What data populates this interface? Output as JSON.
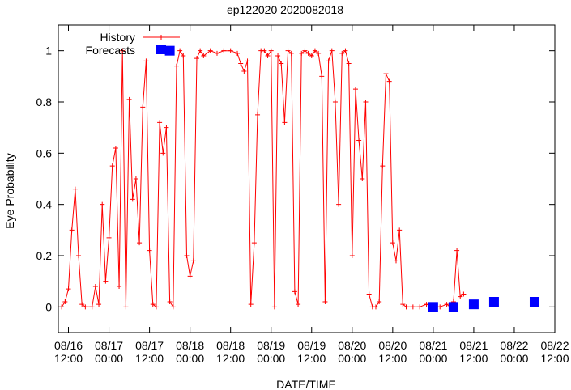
{
  "chart_data": {
    "type": "line",
    "title": "ep122020 2020082018",
    "xlabel": "DATE/TIME",
    "ylabel": "Eye Probability",
    "xlim": [
      "2020-08-16 09:00",
      "2020-08-22 12:00"
    ],
    "ylim": [
      -0.1,
      1.1
    ],
    "y_ticks": [
      "0",
      "0.2",
      "0.4",
      "0.6",
      "0.8",
      "1"
    ],
    "x_ticks": [
      {
        "date": "08/16",
        "time": "12:00"
      },
      {
        "date": "08/17",
        "time": "00:00"
      },
      {
        "date": "08/17",
        "time": "12:00"
      },
      {
        "date": "08/18",
        "time": "00:00"
      },
      {
        "date": "08/18",
        "time": "12:00"
      },
      {
        "date": "08/19",
        "time": "00:00"
      },
      {
        "date": "08/19",
        "time": "12:00"
      },
      {
        "date": "08/20",
        "time": "00:00"
      },
      {
        "date": "08/20",
        "time": "12:00"
      },
      {
        "date": "08/21",
        "time": "00:00"
      },
      {
        "date": "08/21",
        "time": "12:00"
      },
      {
        "date": "08/22",
        "time": "00:00"
      },
      {
        "date": "08/22",
        "time": "12:00"
      }
    ],
    "grid": false,
    "legend_position": "top-left",
    "series": [
      {
        "name": "History",
        "color": "#ff0000",
        "marker": "plus",
        "points": [
          [
            "2020-08-16 10:00",
            0.0
          ],
          [
            "2020-08-16 11:00",
            0.02
          ],
          [
            "2020-08-16 12:00",
            0.07
          ],
          [
            "2020-08-16 13:00",
            0.3
          ],
          [
            "2020-08-16 14:00",
            0.46
          ],
          [
            "2020-08-16 15:00",
            0.2
          ],
          [
            "2020-08-16 16:00",
            0.01
          ],
          [
            "2020-08-16 17:00",
            0.0
          ],
          [
            "2020-08-16 19:00",
            0.0
          ],
          [
            "2020-08-16 20:00",
            0.08
          ],
          [
            "2020-08-16 21:00",
            0.01
          ],
          [
            "2020-08-16 22:00",
            0.4
          ],
          [
            "2020-08-16 23:00",
            0.1
          ],
          [
            "2020-08-17 00:00",
            0.27
          ],
          [
            "2020-08-17 01:00",
            0.55
          ],
          [
            "2020-08-17 02:00",
            0.62
          ],
          [
            "2020-08-17 03:00",
            0.08
          ],
          [
            "2020-08-17 04:00",
            1.0
          ],
          [
            "2020-08-17 05:00",
            0.0
          ],
          [
            "2020-08-17 06:00",
            0.81
          ],
          [
            "2020-08-17 07:00",
            0.42
          ],
          [
            "2020-08-17 08:00",
            0.5
          ],
          [
            "2020-08-17 09:00",
            0.25
          ],
          [
            "2020-08-17 10:00",
            0.78
          ],
          [
            "2020-08-17 11:00",
            0.96
          ],
          [
            "2020-08-17 12:00",
            0.22
          ],
          [
            "2020-08-17 13:00",
            0.01
          ],
          [
            "2020-08-17 14:00",
            0.0
          ],
          [
            "2020-08-17 15:00",
            0.72
          ],
          [
            "2020-08-17 16:00",
            0.6
          ],
          [
            "2020-08-17 17:00",
            0.7
          ],
          [
            "2020-08-17 18:00",
            0.02
          ],
          [
            "2020-08-17 19:00",
            0.0
          ],
          [
            "2020-08-17 20:00",
            0.94
          ],
          [
            "2020-08-17 21:00",
            1.0
          ],
          [
            "2020-08-17 22:00",
            0.98
          ],
          [
            "2020-08-17 23:00",
            0.2
          ],
          [
            "2020-08-18 00:00",
            0.12
          ],
          [
            "2020-08-18 01:00",
            0.18
          ],
          [
            "2020-08-18 02:00",
            0.97
          ],
          [
            "2020-08-18 03:00",
            1.0
          ],
          [
            "2020-08-18 04:00",
            0.98
          ],
          [
            "2020-08-18 06:00",
            1.0
          ],
          [
            "2020-08-18 08:00",
            0.99
          ],
          [
            "2020-08-18 10:00",
            1.0
          ],
          [
            "2020-08-18 12:00",
            1.0
          ],
          [
            "2020-08-18 14:00",
            0.99
          ],
          [
            "2020-08-18 15:00",
            0.95
          ],
          [
            "2020-08-18 16:00",
            0.92
          ],
          [
            "2020-08-18 17:00",
            0.96
          ],
          [
            "2020-08-18 18:00",
            0.01
          ],
          [
            "2020-08-18 19:00",
            0.25
          ],
          [
            "2020-08-18 20:00",
            0.75
          ],
          [
            "2020-08-18 21:00",
            1.0
          ],
          [
            "2020-08-18 22:00",
            1.0
          ],
          [
            "2020-08-18 23:00",
            0.98
          ],
          [
            "2020-08-19 00:00",
            1.0
          ],
          [
            "2020-08-19 01:00",
            0.0
          ],
          [
            "2020-08-19 02:00",
            0.98
          ],
          [
            "2020-08-19 03:00",
            0.95
          ],
          [
            "2020-08-19 04:00",
            0.72
          ],
          [
            "2020-08-19 05:00",
            1.0
          ],
          [
            "2020-08-19 06:00",
            0.99
          ],
          [
            "2020-08-19 07:00",
            0.06
          ],
          [
            "2020-08-19 08:00",
            0.01
          ],
          [
            "2020-08-19 09:00",
            0.99
          ],
          [
            "2020-08-19 10:00",
            1.0
          ],
          [
            "2020-08-19 11:00",
            0.99
          ],
          [
            "2020-08-19 12:00",
            0.98
          ],
          [
            "2020-08-19 13:00",
            1.0
          ],
          [
            "2020-08-19 14:00",
            0.99
          ],
          [
            "2020-08-19 15:00",
            0.9
          ],
          [
            "2020-08-19 16:00",
            0.02
          ],
          [
            "2020-08-19 17:00",
            0.96
          ],
          [
            "2020-08-19 18:00",
            1.0
          ],
          [
            "2020-08-19 19:00",
            0.8
          ],
          [
            "2020-08-19 20:00",
            0.4
          ],
          [
            "2020-08-19 21:00",
            0.99
          ],
          [
            "2020-08-19 22:00",
            1.0
          ],
          [
            "2020-08-19 23:00",
            0.95
          ],
          [
            "2020-08-20 00:00",
            0.2
          ],
          [
            "2020-08-20 01:00",
            0.85
          ],
          [
            "2020-08-20 02:00",
            0.65
          ],
          [
            "2020-08-20 03:00",
            0.5
          ],
          [
            "2020-08-20 04:00",
            0.8
          ],
          [
            "2020-08-20 05:00",
            0.05
          ],
          [
            "2020-08-20 06:00",
            0.0
          ],
          [
            "2020-08-20 07:00",
            0.0
          ],
          [
            "2020-08-20 08:00",
            0.02
          ],
          [
            "2020-08-20 09:00",
            0.55
          ],
          [
            "2020-08-20 10:00",
            0.91
          ],
          [
            "2020-08-20 11:00",
            0.88
          ],
          [
            "2020-08-20 12:00",
            0.25
          ],
          [
            "2020-08-20 13:00",
            0.18
          ],
          [
            "2020-08-20 14:00",
            0.3
          ],
          [
            "2020-08-20 15:00",
            0.01
          ],
          [
            "2020-08-20 16:00",
            0.0
          ],
          [
            "2020-08-20 18:00",
            0.0
          ],
          [
            "2020-08-20 20:00",
            0.0
          ],
          [
            "2020-08-20 22:00",
            0.01
          ],
          [
            "2020-08-21 00:00",
            0.0
          ],
          [
            "2020-08-21 02:00",
            0.0
          ],
          [
            "2020-08-21 04:00",
            0.01
          ],
          [
            "2020-08-21 05:00",
            0.0
          ],
          [
            "2020-08-21 06:00",
            0.02
          ],
          [
            "2020-08-21 07:00",
            0.22
          ],
          [
            "2020-08-21 08:00",
            0.04
          ],
          [
            "2020-08-21 09:00",
            0.05
          ]
        ]
      },
      {
        "name": "Forecasts",
        "color": "#0000ff",
        "marker": "square",
        "points": [
          [
            "2020-08-17 18:00",
            1.0
          ],
          [
            "2020-08-21 00:00",
            0.0
          ],
          [
            "2020-08-21 06:00",
            0.0
          ],
          [
            "2020-08-21 12:00",
            0.01
          ],
          [
            "2020-08-21 18:00",
            0.02
          ],
          [
            "2020-08-22 06:00",
            0.02
          ]
        ]
      }
    ]
  }
}
